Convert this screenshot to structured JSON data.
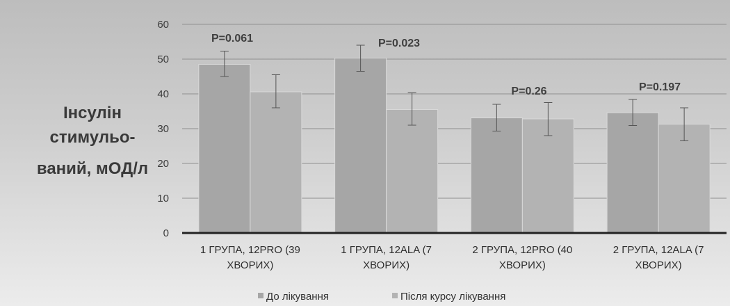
{
  "chart_data": {
    "type": "bar",
    "ylabel_lines": [
      "Інсулін",
      "стимульо-",
      "ваний, мОД/л"
    ],
    "ylim": [
      0,
      60
    ],
    "yticks": [
      0,
      10,
      20,
      30,
      40,
      50,
      60
    ],
    "grid": true,
    "legend_position": "bottom",
    "categories": [
      [
        "1 ГРУПА, 12PRO (39",
        "ХВОРИХ)"
      ],
      [
        "1 ГРУПА, 12ALA (7",
        "ХВОРИХ)"
      ],
      [
        "2 ГРУПА, 12PRO (40",
        "ХВОРИХ)"
      ],
      [
        "2 ГРУПА, 12ALA (7",
        "ХВОРИХ)"
      ]
    ],
    "series": [
      {
        "name": "До лікування",
        "color": "#a6a6a6",
        "values": [
          48.5,
          50.3,
          33.1,
          34.6
        ],
        "err_low": [
          45.0,
          46.5,
          29.3,
          30.9
        ],
        "err_high": [
          52.3,
          54.0,
          37.0,
          38.4
        ]
      },
      {
        "name": "Після курсу лікування",
        "color": "#b3b3b3",
        "values": [
          40.6,
          35.5,
          32.8,
          31.3
        ],
        "err_low": [
          36.0,
          31.0,
          28.0,
          26.5
        ],
        "err_high": [
          45.5,
          40.3,
          37.5,
          36.0
        ]
      }
    ],
    "annotations": [
      "P=0.061",
      "P=0.023",
      "P=0.26",
      "P=0.197"
    ]
  }
}
